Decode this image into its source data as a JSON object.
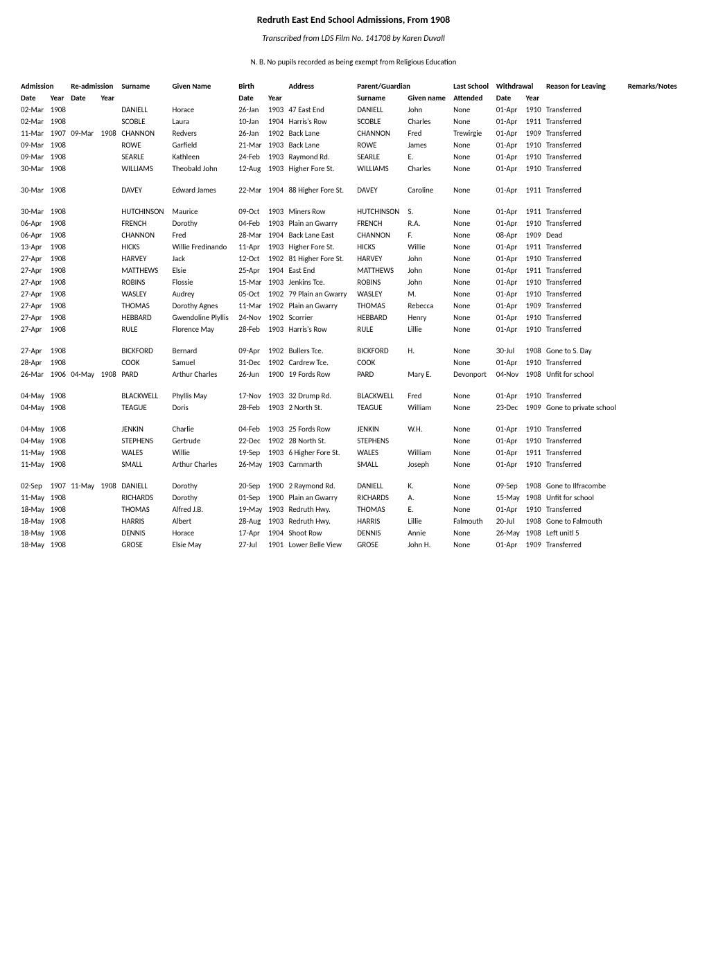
{
  "title": "Redruth East End School Admissions, From 1908",
  "subtitle": "Transcribed from LDS Film No. 141708 by Karen Duvall",
  "note": "N. B. No pupils recorded as being exempt from Religious Education",
  "group_headers": {
    "admission": "Admission",
    "readmission": "Re-admission",
    "surname_h": "Surname",
    "given_name_h": "Given Name",
    "birth": "Birth",
    "address_h": "Address",
    "parent": "Parent/Guardian",
    "last_school_h": "Last School",
    "withdrawal": "Withdrawal",
    "reason_h": "Reason for Leaving",
    "remarks_h": "Remarks/Notes"
  },
  "sub_headers": {
    "date": "Date",
    "year": "Year",
    "surname": "Surname",
    "given_name": "Given name",
    "attended": "Attended"
  },
  "rows": [
    {
      "adm_date": "02-Mar",
      "adm_year": "1908",
      "re_date": "",
      "re_year": "",
      "surname": "DANIELL",
      "given": "Horace",
      "b_date": "26-Jan",
      "b_year": "1903",
      "address": "47 East End",
      "p_surname": "DANIELL",
      "p_given": "John",
      "last": "None",
      "w_date": "01-Apr",
      "w_year": "1910",
      "reason": "Transferred",
      "remarks": ""
    },
    {
      "adm_date": "02-Mar",
      "adm_year": "1908",
      "re_date": "",
      "re_year": "",
      "surname": "SCOBLE",
      "given": "Laura",
      "b_date": "10-Jan",
      "b_year": "1904",
      "address": "Harris's Row",
      "p_surname": "SCOBLE",
      "p_given": "Charles",
      "last": "None",
      "w_date": "01-Apr",
      "w_year": "1911",
      "reason": "Transferred",
      "remarks": ""
    },
    {
      "adm_date": "11-Mar",
      "adm_year": "1907",
      "re_date": "09-Mar",
      "re_year": "1908",
      "surname": "CHANNON",
      "given": "Redvers",
      "b_date": "26-Jan",
      "b_year": "1902",
      "address": "Back Lane",
      "p_surname": "CHANNON",
      "p_given": "Fred",
      "last": "Trewirgie",
      "w_date": "01-Apr",
      "w_year": "1909",
      "reason": "Transferred",
      "remarks": ""
    },
    {
      "adm_date": "09-Mar",
      "adm_year": "1908",
      "re_date": "",
      "re_year": "",
      "surname": "ROWE",
      "given": "Garfield",
      "b_date": "21-Mar",
      "b_year": "1903",
      "address": "Back Lane",
      "p_surname": "ROWE",
      "p_given": "James",
      "last": "None",
      "w_date": "01-Apr",
      "w_year": "1910",
      "reason": "Transferred",
      "remarks": ""
    },
    {
      "adm_date": "09-Mar",
      "adm_year": "1908",
      "re_date": "",
      "re_year": "",
      "surname": "SEARLE",
      "given": "Kathleen",
      "b_date": "24-Feb",
      "b_year": "1903",
      "address": "Raymond Rd.",
      "p_surname": "SEARLE",
      "p_given": "E.",
      "last": "None",
      "w_date": "01-Apr",
      "w_year": "1910",
      "reason": "Transferred",
      "remarks": ""
    },
    {
      "adm_date": "30-Mar",
      "adm_year": "1908",
      "re_date": "",
      "re_year": "",
      "surname": "WILLIAMS",
      "given": "Theobald John",
      "b_date": "12-Aug",
      "b_year": "1903",
      "address": "Higher Fore St.",
      "p_surname": "WILLIAMS",
      "p_given": "Charles",
      "last": "None",
      "w_date": "01-Apr",
      "w_year": "1910",
      "reason": "Transferred",
      "remarks": ""
    },
    {
      "spacer": true
    },
    {
      "adm_date": "30-Mar",
      "adm_year": "1908",
      "re_date": "",
      "re_year": "",
      "surname": "DAVEY",
      "given": "Edward James",
      "b_date": "22-Mar",
      "b_year": "1904",
      "address": "88 Higher Fore St.",
      "p_surname": "DAVEY",
      "p_given": "Caroline",
      "last": "None",
      "w_date": "01-Apr",
      "w_year": "1911",
      "reason": "Transferred",
      "remarks": ""
    },
    {
      "spacer": true
    },
    {
      "adm_date": "30-Mar",
      "adm_year": "1908",
      "re_date": "",
      "re_year": "",
      "surname": "HUTCHINSON",
      "given": "Maurice",
      "b_date": "09-Oct",
      "b_year": "1903",
      "address": "Miners Row",
      "p_surname": "HUTCHINSON",
      "p_given": "S.",
      "last": "None",
      "w_date": "01-Apr",
      "w_year": "1911",
      "reason": "Transferred",
      "remarks": ""
    },
    {
      "adm_date": "06-Apr",
      "adm_year": "1908",
      "re_date": "",
      "re_year": "",
      "surname": "FRENCH",
      "given": "Dorothy",
      "b_date": "04-Feb",
      "b_year": "1903",
      "address": "Plain an Gwarry",
      "p_surname": "FRENCH",
      "p_given": "R.A.",
      "last": "None",
      "w_date": "01-Apr",
      "w_year": "1910",
      "reason": "Transferred",
      "remarks": ""
    },
    {
      "adm_date": "06-Apr",
      "adm_year": "1908",
      "re_date": "",
      "re_year": "",
      "surname": "CHANNON",
      "given": "Fred",
      "b_date": "28-Mar",
      "b_year": "1904",
      "address": "Back Lane East",
      "p_surname": "CHANNON",
      "p_given": "F.",
      "last": "None",
      "w_date": "08-Apr",
      "w_year": "1909",
      "reason": "Dead",
      "remarks": ""
    },
    {
      "adm_date": "13-Apr",
      "adm_year": "1908",
      "re_date": "",
      "re_year": "",
      "surname": "HICKS",
      "given": "Willie Fredinando",
      "b_date": "11-Apr",
      "b_year": "1903",
      "address": "Higher Fore St.",
      "p_surname": "HICKS",
      "p_given": "Willie",
      "last": "None",
      "w_date": "01-Apr",
      "w_year": "1911",
      "reason": "Transferred",
      "remarks": ""
    },
    {
      "adm_date": "27-Apr",
      "adm_year": "1908",
      "re_date": "",
      "re_year": "",
      "surname": "HARVEY",
      "given": "Jack",
      "b_date": "12-Oct",
      "b_year": "1902",
      "address": "81 Higher Fore St.",
      "p_surname": "HARVEY",
      "p_given": "John",
      "last": "None",
      "w_date": "01-Apr",
      "w_year": "1910",
      "reason": "Transferred",
      "remarks": ""
    },
    {
      "adm_date": "27-Apr",
      "adm_year": "1908",
      "re_date": "",
      "re_year": "",
      "surname": "MATTHEWS",
      "given": "Elsie",
      "b_date": "25-Apr",
      "b_year": "1904",
      "address": "East End",
      "p_surname": "MATTHEWS",
      "p_given": "John",
      "last": "None",
      "w_date": "01-Apr",
      "w_year": "1911",
      "reason": "Transferred",
      "remarks": ""
    },
    {
      "adm_date": "27-Apr",
      "adm_year": "1908",
      "re_date": "",
      "re_year": "",
      "surname": "ROBINS",
      "given": "Flossie",
      "b_date": "15-Mar",
      "b_year": "1903",
      "address": "Jenkins Tce.",
      "p_surname": "ROBINS",
      "p_given": "John",
      "last": "None",
      "w_date": "01-Apr",
      "w_year": "1910",
      "reason": "Transferred",
      "remarks": ""
    },
    {
      "adm_date": "27-Apr",
      "adm_year": "1908",
      "re_date": "",
      "re_year": "",
      "surname": "WASLEY",
      "given": "Audrey",
      "b_date": "05-Oct",
      "b_year": "1902",
      "address": "79 Plain an Gwarry",
      "p_surname": "WASLEY",
      "p_given": "M.",
      "last": "None",
      "w_date": "01-Apr",
      "w_year": "1910",
      "reason": "Transferred",
      "remarks": ""
    },
    {
      "adm_date": "27-Apr",
      "adm_year": "1908",
      "re_date": "",
      "re_year": "",
      "surname": "THOMAS",
      "given": "Dorothy Agnes",
      "b_date": "11-Mar",
      "b_year": "1902",
      "address": "Plain an Gwarry",
      "p_surname": "THOMAS",
      "p_given": "Rebecca",
      "last": "None",
      "w_date": "01-Apr",
      "w_year": "1909",
      "reason": "Transferred",
      "remarks": ""
    },
    {
      "adm_date": "27-Apr",
      "adm_year": "1908",
      "re_date": "",
      "re_year": "",
      "surname": "HEBBARD",
      "given": "Gwendoline Plyllis",
      "b_date": "24-Nov",
      "b_year": "1902",
      "address": "Scorrier",
      "p_surname": "HEBBARD",
      "p_given": "Henry",
      "last": "None",
      "w_date": "01-Apr",
      "w_year": "1910",
      "reason": "Transferred",
      "remarks": ""
    },
    {
      "adm_date": "27-Apr",
      "adm_year": "1908",
      "re_date": "",
      "re_year": "",
      "surname": "RULE",
      "given": "Florence May",
      "b_date": "28-Feb",
      "b_year": "1903",
      "address": "Harris's Row",
      "p_surname": "RULE",
      "p_given": "Lillie",
      "last": "None",
      "w_date": "01-Apr",
      "w_year": "1910",
      "reason": "Transferred",
      "remarks": ""
    },
    {
      "spacer": true
    },
    {
      "adm_date": "27-Apr",
      "adm_year": "1908",
      "re_date": "",
      "re_year": "",
      "surname": "BICKFORD",
      "given": "Bernard",
      "b_date": "09-Apr",
      "b_year": "1902",
      "address": "Bullers Tce.",
      "p_surname": "BICKFORD",
      "p_given": "H.",
      "last": "None",
      "w_date": "30-Jul",
      "w_year": "1908",
      "reason": "Gone to S. Day",
      "remarks": ""
    },
    {
      "adm_date": "28-Apr",
      "adm_year": "1908",
      "re_date": "",
      "re_year": "",
      "surname": "COOK",
      "given": "Samuel",
      "b_date": "31-Dec",
      "b_year": "1902",
      "address": "Cardrew Tce.",
      "p_surname": "COOK",
      "p_given": "",
      "last": "None",
      "w_date": "01-Apr",
      "w_year": "1910",
      "reason": "Transferred",
      "remarks": ""
    },
    {
      "adm_date": "26-Mar",
      "adm_year": "1906",
      "re_date": "04-May",
      "re_year": "1908",
      "surname": "PARD",
      "given": "Arthur Charles",
      "b_date": "26-Jun",
      "b_year": "1900",
      "address": "19 Fords Row",
      "p_surname": "PARD",
      "p_given": "Mary E.",
      "last": "Devonport",
      "w_date": "04-Nov",
      "w_year": "1908",
      "reason": "Unfit for school",
      "remarks": ""
    },
    {
      "spacer": true
    },
    {
      "adm_date": "04-May",
      "adm_year": "1908",
      "re_date": "",
      "re_year": "",
      "surname": "BLACKWELL",
      "given": "Phyllis May",
      "b_date": "17-Nov",
      "b_year": "1903",
      "address": "32 Drump Rd.",
      "p_surname": "BLACKWELL",
      "p_given": "Fred",
      "last": "None",
      "w_date": "01-Apr",
      "w_year": "1910",
      "reason": "Transferred",
      "remarks": ""
    },
    {
      "adm_date": "04-May",
      "adm_year": "1908",
      "re_date": "",
      "re_year": "",
      "surname": "TEAGUE",
      "given": "Doris",
      "b_date": "28-Feb",
      "b_year": "1903",
      "address": "2 North St.",
      "p_surname": "TEAGUE",
      "p_given": "William",
      "last": "None",
      "w_date": "23-Dec",
      "w_year": "1909",
      "reason": "Gone to private school",
      "remarks": ""
    },
    {
      "spacer": true
    },
    {
      "adm_date": "04-May",
      "adm_year": "1908",
      "re_date": "",
      "re_year": "",
      "surname": "JENKIN",
      "given": "Charlie",
      "b_date": "04-Feb",
      "b_year": "1903",
      "address": "25 Fords Row",
      "p_surname": "JENKIN",
      "p_given": "W.H.",
      "last": "None",
      "w_date": "01-Apr",
      "w_year": "1910",
      "reason": "Transferred",
      "remarks": ""
    },
    {
      "adm_date": "04-May",
      "adm_year": "1908",
      "re_date": "",
      "re_year": "",
      "surname": "STEPHENS",
      "given": "Gertrude",
      "b_date": "22-Dec",
      "b_year": "1902",
      "address": "28 North St.",
      "p_surname": "STEPHENS",
      "p_given": "",
      "last": "None",
      "w_date": "01-Apr",
      "w_year": "1910",
      "reason": "Transferred",
      "remarks": ""
    },
    {
      "adm_date": "11-May",
      "adm_year": "1908",
      "re_date": "",
      "re_year": "",
      "surname": "WALES",
      "given": "Willie",
      "b_date": "19-Sep",
      "b_year": "1903",
      "address": "6 Higher Fore St.",
      "p_surname": "WALES",
      "p_given": "William",
      "last": "None",
      "w_date": "01-Apr",
      "w_year": "1911",
      "reason": "Transferred",
      "remarks": ""
    },
    {
      "adm_date": "11-May",
      "adm_year": "1908",
      "re_date": "",
      "re_year": "",
      "surname": "SMALL",
      "given": "Arthur Charles",
      "b_date": "26-May",
      "b_year": "1903",
      "address": "Carnmarth",
      "p_surname": "SMALL",
      "p_given": "Joseph",
      "last": "None",
      "w_date": "01-Apr",
      "w_year": "1910",
      "reason": "Transferred",
      "remarks": ""
    },
    {
      "spacer": true
    },
    {
      "adm_date": "02-Sep",
      "adm_year": "1907",
      "re_date": "11-May",
      "re_year": "1908",
      "surname": "DANIELL",
      "given": "Dorothy",
      "b_date": "20-Sep",
      "b_year": "1900",
      "address": "2 Raymond Rd.",
      "p_surname": "DANIELL",
      "p_given": "K.",
      "last": "None",
      "w_date": "09-Sep",
      "w_year": "1908",
      "reason": "Gone to Ilfracombe",
      "remarks": ""
    },
    {
      "adm_date": "11-May",
      "adm_year": "1908",
      "re_date": "",
      "re_year": "",
      "surname": "RICHARDS",
      "given": "Dorothy",
      "b_date": "01-Sep",
      "b_year": "1900",
      "address": "Plain an Gwarry",
      "p_surname": "RICHARDS",
      "p_given": "A.",
      "last": "None",
      "w_date": "15-May",
      "w_year": "1908",
      "reason": "Unfit for school",
      "remarks": ""
    },
    {
      "adm_date": "18-May",
      "adm_year": "1908",
      "re_date": "",
      "re_year": "",
      "surname": "THOMAS",
      "given": "Alfred J.B.",
      "b_date": "19-May",
      "b_year": "1903",
      "address": "Redruth Hwy.",
      "p_surname": "THOMAS",
      "p_given": "E.",
      "last": "None",
      "w_date": "01-Apr",
      "w_year": "1910",
      "reason": "Transferred",
      "remarks": ""
    },
    {
      "adm_date": "18-May",
      "adm_year": "1908",
      "re_date": "",
      "re_year": "",
      "surname": "HARRIS",
      "given": "Albert",
      "b_date": "28-Aug",
      "b_year": "1903",
      "address": "Redruth Hwy.",
      "p_surname": "HARRIS",
      "p_given": "Lillie",
      "last": "Falmouth",
      "w_date": "20-Jul",
      "w_year": "1908",
      "reason": "Gone to Falmouth",
      "remarks": ""
    },
    {
      "adm_date": "18-May",
      "adm_year": "1908",
      "re_date": "",
      "re_year": "",
      "surname": "DENNIS",
      "given": "Horace",
      "b_date": "17-Apr",
      "b_year": "1904",
      "address": "Shoot Row",
      "p_surname": "DENNIS",
      "p_given": "Annie",
      "last": "None",
      "w_date": "26-May",
      "w_year": "1908",
      "reason": "Left unitl 5",
      "remarks": ""
    },
    {
      "adm_date": "18-May",
      "adm_year": "1908",
      "re_date": "",
      "re_year": "",
      "surname": "GROSE",
      "given": "Elsie May",
      "b_date": "27-Jul",
      "b_year": "1901",
      "address": "Lower Belle View",
      "p_surname": "GROSE",
      "p_given": "John H.",
      "last": "None",
      "w_date": "01-Apr",
      "w_year": "1909",
      "reason": "Transferred",
      "remarks": ""
    }
  ],
  "style": {
    "background_color": "#ffffff",
    "text_color": "#000000",
    "font_family": "Calibri, Arial, sans-serif",
    "title_fontsize": 14,
    "body_fontsize": 11
  }
}
